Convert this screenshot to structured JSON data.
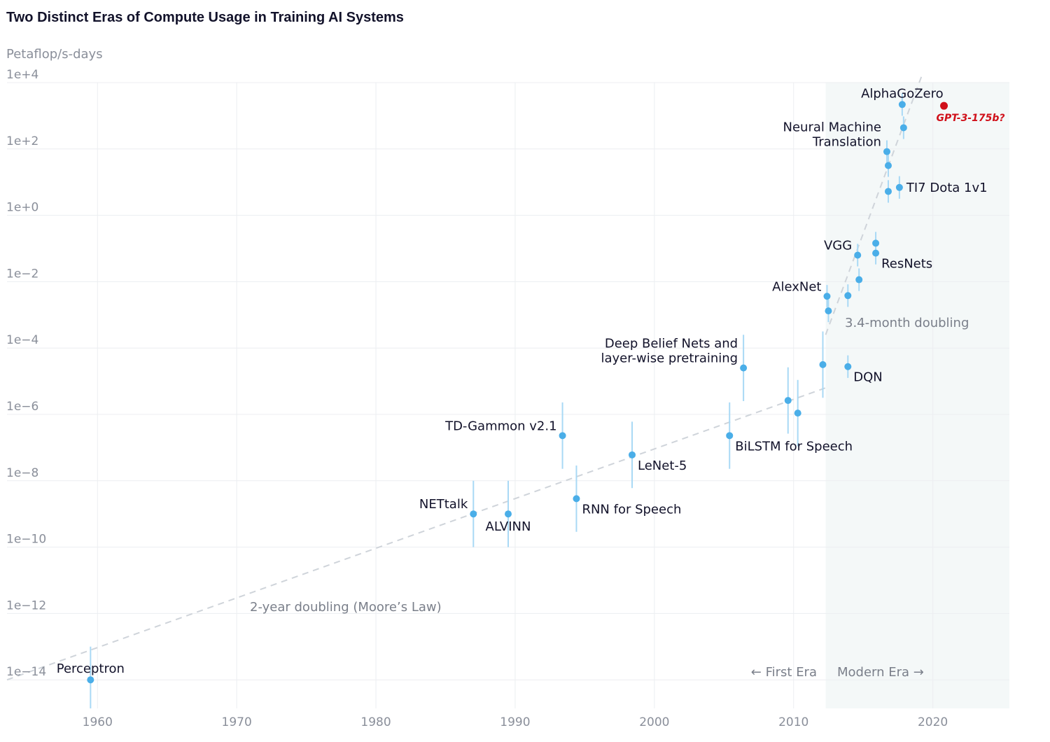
{
  "chart_data": {
    "type": "scatter",
    "title": "Two Distinct Eras of Compute Usage in Training AI Systems",
    "ylabel": "Petaflop/s-days",
    "xlabel": "",
    "y_scale": "log10",
    "xlim": [
      1953.5,
      2025.5
    ],
    "ylim": [
      -15.0,
      4.2
    ],
    "x_ticks": [
      1960,
      1970,
      1980,
      1990,
      2000,
      2010,
      2020
    ],
    "y_ticks": [
      {
        "exp": 4,
        "label": "1e+4"
      },
      {
        "exp": 2,
        "label": "1e+2"
      },
      {
        "exp": 0,
        "label": "1e+0"
      },
      {
        "exp": -2,
        "label": "1e−2"
      },
      {
        "exp": -4,
        "label": "1e−4"
      },
      {
        "exp": -6,
        "label": "1e−6"
      },
      {
        "exp": -8,
        "label": "1e−8"
      },
      {
        "exp": -10,
        "label": "1e−10"
      },
      {
        "exp": -12,
        "label": "1e−12"
      },
      {
        "exp": -14,
        "label": "1e−14"
      }
    ],
    "grid": true,
    "modern_era_start": 2012.3,
    "colors": {
      "point": "#4aaee8",
      "errorbar": "#a9d9f5",
      "trend": "#cfd4da",
      "grid": "#eceef1",
      "modern_bg": "#f4f8f8",
      "highlight": "#d0101a"
    },
    "points": [
      {
        "label": "Perceptron",
        "year": 1959.5,
        "log10_pfsdays": -14.0,
        "err_lo": -15.0,
        "err_hi": -13.0,
        "label_pos": "above"
      },
      {
        "label": "NETtalk",
        "year": 1987.0,
        "log10_pfsdays": -9.0,
        "err_lo": -10.0,
        "err_hi": -8.0,
        "label_pos": "upper-left"
      },
      {
        "label": "ALVINN",
        "year": 1989.5,
        "log10_pfsdays": -9.0,
        "err_lo": -10.0,
        "err_hi": -8.0,
        "label_pos": "below"
      },
      {
        "label": "TD-Gammon v2.1",
        "year": 1993.4,
        "log10_pfsdays": -6.64,
        "err_lo": -7.64,
        "err_hi": -5.64,
        "label_pos": "upper-left"
      },
      {
        "label": "RNN for Speech",
        "year": 1994.4,
        "log10_pfsdays": -8.54,
        "err_lo": -9.54,
        "err_hi": -7.54,
        "label_pos": "lower-right"
      },
      {
        "label": "LeNet-5",
        "year": 1998.4,
        "log10_pfsdays": -7.22,
        "err_lo": -8.22,
        "err_hi": -6.22,
        "label_pos": "lower-right"
      },
      {
        "label": "BiLSTM for Speech",
        "year": 2005.4,
        "log10_pfsdays": -6.64,
        "err_lo": -7.64,
        "err_hi": -5.64,
        "label_pos": "lower-right"
      },
      {
        "label": "Deep Belief Nets and layer-wise pretraining",
        "lines": [
          "Deep Belief Nets and",
          "layer-wise pretraining"
        ],
        "year": 2006.4,
        "log10_pfsdays": -4.6,
        "err_lo": -5.6,
        "err_hi": -3.6,
        "label_pos": "upper-left"
      },
      {
        "label": "",
        "year": 2009.6,
        "log10_pfsdays": -5.58,
        "err_lo": -6.58,
        "err_hi": -4.58
      },
      {
        "label": "",
        "year": 2010.3,
        "log10_pfsdays": -5.96,
        "err_lo": -6.96,
        "err_hi": -4.96
      },
      {
        "label": "",
        "year": 2012.1,
        "log10_pfsdays": -4.5,
        "err_lo": -5.5,
        "err_hi": -3.5
      },
      {
        "label": "DQN",
        "year": 2013.9,
        "log10_pfsdays": -4.56,
        "err_lo": -4.9,
        "err_hi": -4.22,
        "label_pos": "lower-right"
      },
      {
        "label": "AlexNet",
        "year": 2012.4,
        "log10_pfsdays": -2.44,
        "err_lo": -2.78,
        "err_hi": -2.1,
        "label_pos": "upper-left"
      },
      {
        "label": "",
        "year": 2012.5,
        "log10_pfsdays": -2.88,
        "err_lo": -3.22,
        "err_hi": -2.54
      },
      {
        "label": "",
        "year": 2013.9,
        "log10_pfsdays": -2.42,
        "err_lo": -2.76,
        "err_hi": -2.08
      },
      {
        "label": "",
        "year": 2014.7,
        "log10_pfsdays": -1.94,
        "err_lo": -2.28,
        "err_hi": -1.6
      },
      {
        "label": "VGG",
        "year": 2014.6,
        "log10_pfsdays": -1.2,
        "err_lo": -1.54,
        "err_hi": -0.86,
        "label_pos": "upper-left"
      },
      {
        "label": "ResNets",
        "year": 2015.9,
        "log10_pfsdays": -1.14,
        "err_lo": -1.48,
        "err_hi": -0.8,
        "label_pos": "lower-right"
      },
      {
        "label": "",
        "year": 2015.9,
        "log10_pfsdays": -0.84,
        "err_lo": -1.18,
        "err_hi": -0.5
      },
      {
        "label": "",
        "year": 2016.8,
        "log10_pfsdays": 0.72,
        "err_lo": 0.38,
        "err_hi": 1.06
      },
      {
        "label": "TI7 Dota 1v1",
        "year": 2017.6,
        "log10_pfsdays": 0.84,
        "err_lo": 0.5,
        "err_hi": 1.18,
        "label_pos": "right"
      },
      {
        "label": "Neural Machine Translation",
        "lines": [
          "Neural Machine",
          "Translation"
        ],
        "year": 2016.7,
        "log10_pfsdays": 1.92,
        "err_lo": 1.58,
        "err_hi": 2.26,
        "label_pos": "upper-left"
      },
      {
        "label": "",
        "year": 2016.8,
        "log10_pfsdays": 1.5,
        "err_lo": 1.16,
        "err_hi": 1.84
      },
      {
        "label": "",
        "year": 2017.9,
        "log10_pfsdays": 2.64,
        "err_lo": 2.3,
        "err_hi": 2.98
      },
      {
        "label": "AlphaGoZero",
        "year": 2017.8,
        "log10_pfsdays": 3.34,
        "err_lo": 3.0,
        "err_hi": 3.68,
        "label_pos": "above"
      }
    ],
    "highlight": {
      "label": "GPT-3-175b?",
      "year": 2020.8,
      "log10_pfsdays": 3.3
    },
    "trends": [
      {
        "name": "2-year doubling (Moore’s Law)",
        "from": [
          1953.5,
          -14.0
        ],
        "to": [
          2012.3,
          -5.2
        ]
      },
      {
        "name": "3.4-month doubling",
        "from": [
          2012.3,
          -3.6
        ],
        "to": [
          2019.2,
          4.2
        ]
      }
    ],
    "annotations": {
      "moore": "2-year doubling (Moore’s Law)",
      "modern_trend": "3.4-month doubling",
      "first_era": "← First Era",
      "modern_era": "Modern Era →"
    }
  }
}
